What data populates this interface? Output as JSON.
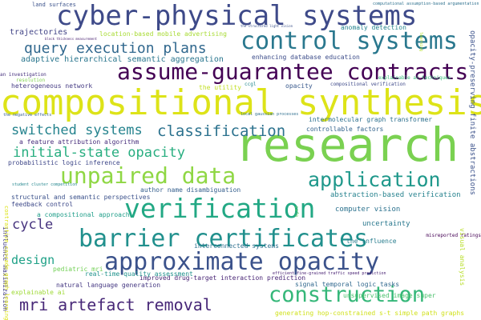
{
  "words": [
    {
      "text": "research",
      "color": "#7ad151"
    },
    {
      "text": "compositional synthesis",
      "color": "#dde318"
    },
    {
      "text": "cyber-physical systems",
      "color": "#3e4a89"
    },
    {
      "text": "control systems",
      "color": "#2a788e"
    },
    {
      "text": "assume-guarantee contracts",
      "color": "#440154"
    },
    {
      "text": "barrier certificates",
      "color": "#21908d"
    },
    {
      "text": "approximate opacity",
      "color": "#3b528b"
    },
    {
      "text": "verification",
      "color": "#22a884"
    },
    {
      "text": "unpaired data",
      "color": "#8fd744"
    },
    {
      "text": "construction",
      "color": "#35b779"
    },
    {
      "text": "application",
      "color": "#1f988b"
    },
    {
      "text": "classification",
      "color": "#2c728e"
    },
    {
      "text": "mri artefact removal",
      "color": "#482878"
    },
    {
      "text": "query execution plans",
      "color": "#31688e"
    },
    {
      "text": "switched systems",
      "color": "#25838e"
    },
    {
      "text": "initial-state opacity",
      "color": "#28ae80"
    },
    {
      "text": "cycle",
      "color": "#46337e"
    },
    {
      "text": "design",
      "color": "#1fa187"
    },
    {
      "text": "adaptive hierarchical semantic aggregation",
      "color": "#2a768e"
    },
    {
      "text": "location-based mobile advertising",
      "color": "#a8db34"
    },
    {
      "text": "trajectories",
      "color": "#414487"
    },
    {
      "text": "enhancing database education",
      "color": "#3d4d8a"
    },
    {
      "text": "anomaly detection",
      "color": "#25848e"
    },
    {
      "text": "explainable ai techniques",
      "color": "#35b779"
    },
    {
      "text": "opacity-preserving finite abstractions",
      "color": "#3b528b"
    },
    {
      "text": "intermolecular graph transformer",
      "color": "#2d708e"
    },
    {
      "text": "controllable factors",
      "color": "#33638d"
    },
    {
      "text": "a feature attribution algorithm",
      "color": "#472d7b"
    },
    {
      "text": "probabilistic logic inference",
      "color": "#3f4889"
    },
    {
      "text": "author name disambiguation",
      "color": "#355f8d"
    },
    {
      "text": "structural and semantic perspectives",
      "color": "#3b518b"
    },
    {
      "text": "abstraction-based verification",
      "color": "#26828e"
    },
    {
      "text": "uncertainty",
      "color": "#2a788e"
    },
    {
      "text": "computer vision",
      "color": "#2c728e"
    },
    {
      "text": "signal temporal logic tasks",
      "color": "#31688e"
    },
    {
      "text": "improved drug-target interaction prediction",
      "color": "#482475"
    },
    {
      "text": "natural language generation",
      "color": "#453882"
    },
    {
      "text": "explainable ai",
      "color": "#a0da39"
    },
    {
      "text": "pediatric mri",
      "color": "#73d056"
    },
    {
      "text": "real-time quality assessment",
      "color": "#20928c"
    },
    {
      "text": "visual analysis",
      "color": "#b8de29"
    },
    {
      "text": "interconnected systems",
      "color": "#2d708e"
    },
    {
      "text": "the influence",
      "color": "#287d8e"
    },
    {
      "text": "generating hop-constrained s-t simple path graphs",
      "color": "#d0e11c"
    },
    {
      "text": "unsupervised image super",
      "color": "#4ac16d"
    },
    {
      "text": "influence maximization",
      "color": "#433e85"
    },
    {
      "text": "feedback control",
      "color": "#3e4a89"
    },
    {
      "text": "a compositional approach",
      "color": "#1f9e89"
    },
    {
      "text": "heterogeneous network",
      "color": "#443a83"
    },
    {
      "text": "an investigation",
      "color": "#46307e"
    },
    {
      "text": "resolution",
      "color": "#7fd34e"
    },
    {
      "text": "the negative effects",
      "color": "#355f8d"
    },
    {
      "text": "ccgl",
      "color": "#23898e"
    },
    {
      "text": "opacity",
      "color": "#38598c"
    },
    {
      "text": "the utility",
      "color": "#c2df23"
    },
    {
      "text": "compositional verification",
      "color": "#3e4989"
    },
    {
      "text": "local gaussian processes",
      "color": "#2e6f8e"
    },
    {
      "text": "land surfaces",
      "color": "#3b528b"
    },
    {
      "text": "computational assumption-based argumentation",
      "color": "#2d708e"
    },
    {
      "text": "learning",
      "color": "#b5de2b"
    },
    {
      "text": "block thickness measurement",
      "color": "#481f70"
    },
    {
      "text": "the structured light vision",
      "color": "#3b528b"
    },
    {
      "text": "efficient fine-grained traffic speed prediction",
      "color": "#482173"
    },
    {
      "text": "misreported ratings",
      "color": "#440154"
    },
    {
      "text": "student cluster competition",
      "color": "#24868e"
    },
    {
      "text": "contrastive cascade graph learning",
      "color": "#dde318"
    },
    {
      "text": "safe",
      "color": "#5ec962"
    }
  ]
}
